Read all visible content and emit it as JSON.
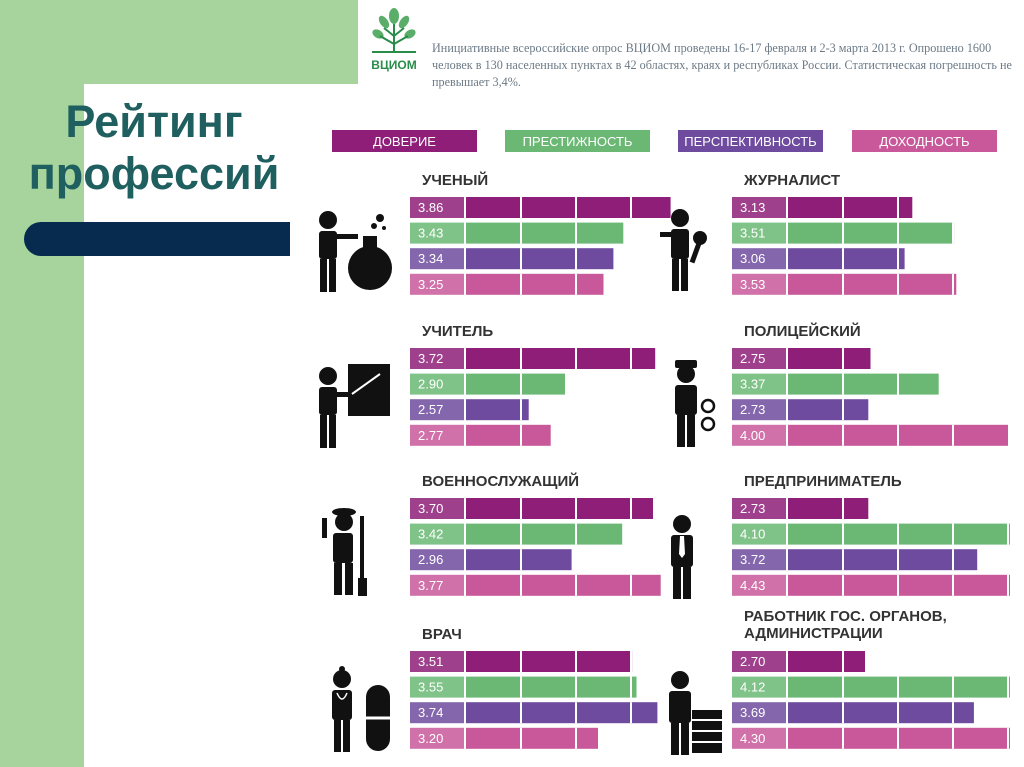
{
  "slide": {
    "title_line1": "Рейтинг",
    "title_line2": "профессий",
    "logo_text": "ВЦИОМ",
    "survey_note": "Инициативные всероссийские опрос ВЦИОМ проведены 16-17 февраля и 2-3 марта 2013 г. Опрошено 1600 человек в 130 населенных пунктах в 42 областях, краях и республиках России. Статистическая погрешность не превышает 3,4%."
  },
  "colors": {
    "green_bg": "#a7d49c",
    "title_text": "#1f5f5f",
    "navy_bar": "#062b4f",
    "trust": "#8e1e78",
    "prestige": "#6ab874",
    "prospects": "#6e4b9f",
    "income": "#c8589a"
  },
  "icons": [
    "scientist-icon",
    "teacher-icon",
    "soldier-icon",
    "doctor-icon",
    "journalist-icon",
    "police-officer-icon",
    "entrepreneur-icon",
    "civil-servant-icon"
  ],
  "chart_data": {
    "type": "bar",
    "series": [
      {
        "name": "ДОВЕРИЕ",
        "color": "#8e1e78"
      },
      {
        "name": "ПРЕСТИЖНОСТЬ",
        "color": "#6ab874"
      },
      {
        "name": "ПЕРСПЕКТИВНОСТЬ",
        "color": "#6e4b9f"
      },
      {
        "name": "ДОХОДНОСТЬ",
        "color": "#c8589a"
      }
    ],
    "categories": [
      "УЧЕНЫЙ",
      "УЧИТЕЛЬ",
      "ВОЕННОСЛУЖАЩИЙ",
      "ВРАЧ",
      "ЖУРНАЛИСТ",
      "ПОЛИЦЕЙСКИЙ",
      "ПРЕДПРИНИМАТЕЛЬ",
      "РАБОТНИК ГОС. ОРГАНОВ, АДМИНИСТРАЦИИ"
    ],
    "professions": [
      {
        "name": "УЧЕНЫЙ",
        "values": [
          3.86,
          3.43,
          3.34,
          3.25
        ],
        "labels": [
          "3.86",
          "3.43",
          "3.34",
          "3.25"
        ]
      },
      {
        "name": "УЧИТЕЛЬ",
        "values": [
          3.72,
          2.9,
          2.57,
          2.77
        ],
        "labels": [
          "3.72",
          "2.90",
          "2.57",
          "2.77"
        ]
      },
      {
        "name": "ВОЕННОСЛУЖАЩИЙ",
        "values": [
          3.7,
          3.42,
          2.96,
          3.77
        ],
        "labels": [
          "3.70",
          "3.42",
          "2.96",
          "3.77"
        ]
      },
      {
        "name": "ВРАЧ",
        "values": [
          3.51,
          3.55,
          3.74,
          3.2
        ],
        "labels": [
          "3.51",
          "3.55",
          "3.74",
          "3.20"
        ]
      },
      {
        "name": "ЖУРНАЛИСТ",
        "values": [
          3.13,
          3.51,
          3.06,
          3.53
        ],
        "labels": [
          "3.13",
          "3.51",
          "3.06",
          "3.53"
        ]
      },
      {
        "name": "ПОЛИЦЕЙСКИЙ",
        "values": [
          2.75,
          3.37,
          2.73,
          4.0
        ],
        "labels": [
          "2.75",
          "3.37",
          "2.73",
          "4.00"
        ]
      },
      {
        "name": "ПРЕДПРИНИМАТЕЛЬ",
        "values": [
          2.73,
          4.1,
          3.72,
          4.43
        ],
        "labels": [
          "2.73",
          "4.10",
          "3.72",
          "4.43"
        ]
      },
      {
        "name": "РАБОТНИК ГОС. ОРГАНОВ, АДМИНИСТРАЦИИ",
        "values": [
          2.7,
          4.12,
          3.69,
          4.3
        ],
        "labels": [
          "2.70",
          "4.12",
          "3.69",
          "4.30"
        ]
      }
    ],
    "title": "",
    "xlabel": "",
    "ylabel": "",
    "xlim": [
      2,
      5
    ],
    "grid": true,
    "legend_position": "top"
  }
}
